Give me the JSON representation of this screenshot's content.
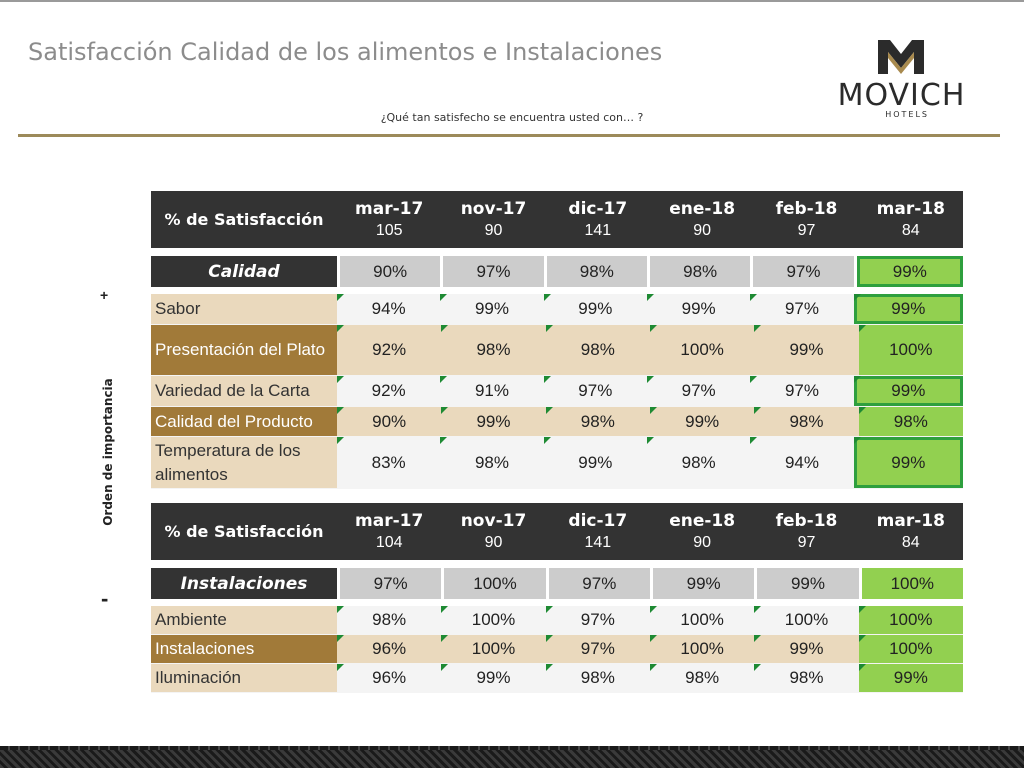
{
  "title": "Satisfacción Calidad de los alimentos e Instalaciones",
  "subtitle": "¿Qué tan satisfecho se encuentra usted con… ?",
  "logo": {
    "name": "MOVICH",
    "sub": "HOTELS",
    "icon": "movich-logo-icon"
  },
  "axis": {
    "label": "Orden de importancia",
    "top_marker": "+",
    "bottom_marker": "-"
  },
  "colors": {
    "header_bg": "#333333",
    "summary_bg": "#cccccc",
    "highlight_green": "#92d050",
    "box_green": "#2e9f3e",
    "beige": "#ead9bd",
    "brown": "#a17a39",
    "gold_rule": "#9c8a5a"
  },
  "quality": {
    "header": {
      "label": "% de Satisfacción",
      "periods": [
        {
          "period": "mar-17",
          "n": "105"
        },
        {
          "period": "nov-17",
          "n": "90"
        },
        {
          "period": "dic-17",
          "n": "141"
        },
        {
          "period": "ene-18",
          "n": "90"
        },
        {
          "period": "feb-18",
          "n": "97"
        },
        {
          "period": "mar-18",
          "n": "84"
        }
      ]
    },
    "summary": {
      "label": "Calidad",
      "values": [
        "90%",
        "97%",
        "98%",
        "98%",
        "97%",
        "99%"
      ]
    },
    "rows": [
      {
        "label": "Sabor",
        "values": [
          "94%",
          "99%",
          "99%",
          "99%",
          "97%",
          "99%"
        ]
      },
      {
        "label": "Presentación del Plato",
        "values": [
          "92%",
          "98%",
          "98%",
          "100%",
          "99%",
          "100%"
        ]
      },
      {
        "label": "Variedad de la Carta",
        "values": [
          "92%",
          "91%",
          "97%",
          "97%",
          "97%",
          "99%"
        ]
      },
      {
        "label": "Calidad del Producto",
        "values": [
          "90%",
          "99%",
          "98%",
          "99%",
          "98%",
          "98%"
        ]
      },
      {
        "label": "Temperatura de los alimentos",
        "values": [
          "83%",
          "98%",
          "99%",
          "98%",
          "94%",
          "99%"
        ]
      }
    ]
  },
  "facilities": {
    "header": {
      "label": "% de Satisfacción",
      "periods": [
        {
          "period": "mar-17",
          "n": "104"
        },
        {
          "period": "nov-17",
          "n": "90"
        },
        {
          "period": "dic-17",
          "n": "141"
        },
        {
          "period": "ene-18",
          "n": "90"
        },
        {
          "period": "feb-18",
          "n": "97"
        },
        {
          "period": "mar-18",
          "n": "84"
        }
      ]
    },
    "summary": {
      "label": "Instalaciones",
      "values": [
        "97%",
        "100%",
        "97%",
        "99%",
        "99%",
        "100%"
      ]
    },
    "rows": [
      {
        "label": "Ambiente",
        "values": [
          "98%",
          "100%",
          "97%",
          "100%",
          "100%",
          "100%"
        ]
      },
      {
        "label": "Instalaciones",
        "values": [
          "96%",
          "100%",
          "97%",
          "100%",
          "99%",
          "100%"
        ]
      },
      {
        "label": "Iluminación",
        "values": [
          "96%",
          "99%",
          "98%",
          "98%",
          "98%",
          "99%"
        ]
      }
    ]
  }
}
